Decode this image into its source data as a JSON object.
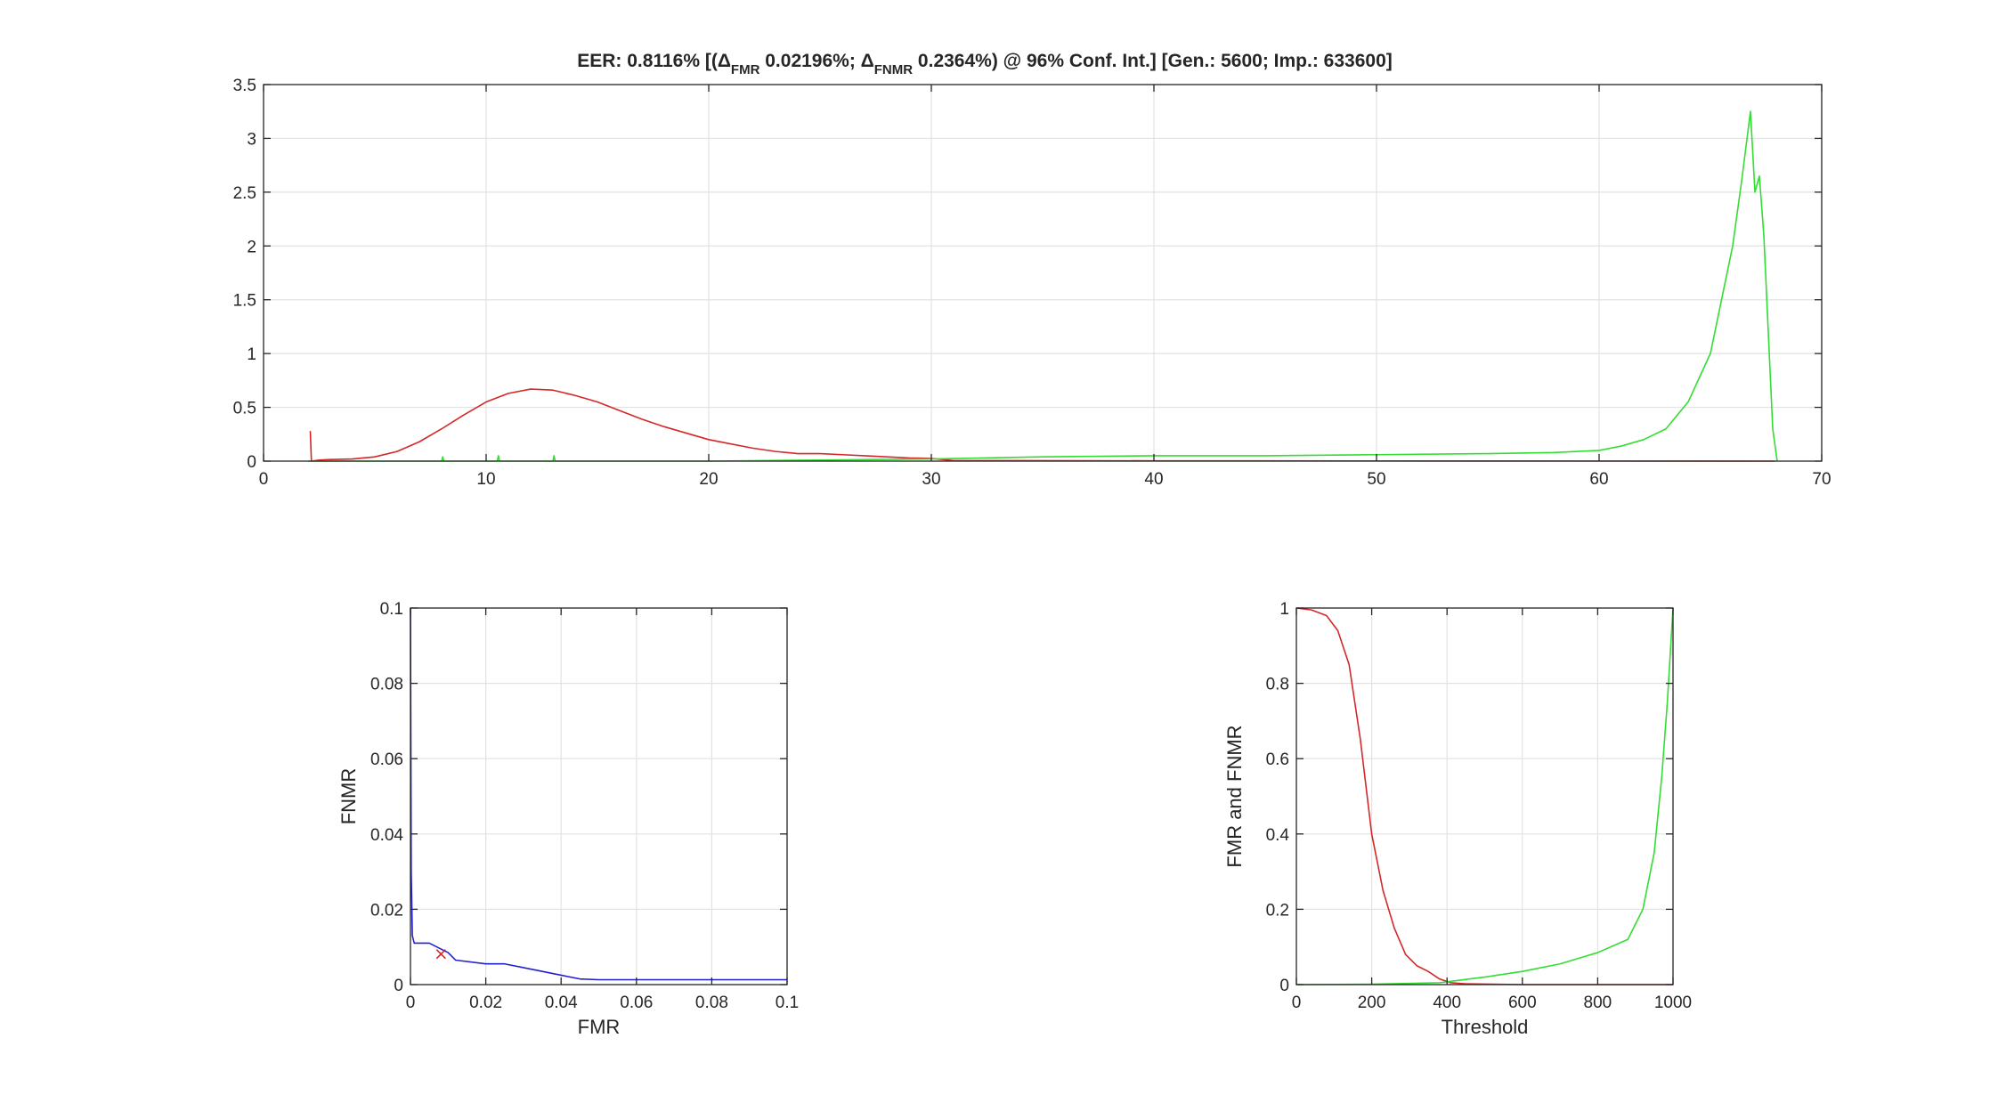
{
  "figure": {
    "title_parts": [
      "EER: 0.8116%   [(Δ",
      "FMR",
      " 0.02196%; Δ",
      "FNMR",
      " 0.2364%) @ 96% Conf. Int.]   [Gen.: 5600; Imp.: 633600]"
    ]
  },
  "chart_data": [
    {
      "type": "line",
      "name": "score-distributions",
      "xlim": [
        0,
        70
      ],
      "ylim": [
        0,
        3.5
      ],
      "xticks": [
        0,
        10,
        20,
        30,
        40,
        50,
        60,
        70
      ],
      "yticks": [
        0,
        0.5,
        1,
        1.5,
        2,
        2.5,
        3,
        3.5
      ],
      "grid": true,
      "xlabel": "",
      "ylabel": "",
      "series": [
        {
          "color": "#d62728",
          "points": [
            [
              2.1,
              0.28
            ],
            [
              2.15,
              0.0
            ],
            [
              2.5,
              0.01
            ],
            [
              3,
              0.015
            ],
            [
              4,
              0.02
            ],
            [
              5,
              0.04
            ],
            [
              6,
              0.09
            ],
            [
              7,
              0.18
            ],
            [
              8,
              0.3
            ],
            [
              9,
              0.43
            ],
            [
              10,
              0.55
            ],
            [
              11,
              0.63
            ],
            [
              12,
              0.67
            ],
            [
              13,
              0.66
            ],
            [
              14,
              0.61
            ],
            [
              15,
              0.55
            ],
            [
              16,
              0.47
            ],
            [
              17,
              0.39
            ],
            [
              18,
              0.32
            ],
            [
              19,
              0.26
            ],
            [
              20,
              0.2
            ],
            [
              21,
              0.16
            ],
            [
              22,
              0.12
            ],
            [
              23,
              0.09
            ],
            [
              24,
              0.07
            ],
            [
              25,
              0.07
            ],
            [
              26,
              0.06
            ],
            [
              27,
              0.05
            ],
            [
              28,
              0.04
            ],
            [
              29,
              0.03
            ],
            [
              30,
              0.025
            ],
            [
              31,
              0.005
            ],
            [
              40,
              0.003
            ],
            [
              50,
              0.002
            ],
            [
              60,
              0.001
            ],
            [
              67.9,
              0.0
            ]
          ]
        },
        {
          "color": "#33dd33",
          "points": [
            [
              2,
              0.0
            ],
            [
              8,
              0.0
            ],
            [
              8.05,
              0.04
            ],
            [
              8.1,
              0.0
            ],
            [
              10.5,
              0.0
            ],
            [
              10.55,
              0.05
            ],
            [
              10.6,
              0.0
            ],
            [
              13,
              0.0
            ],
            [
              13.05,
              0.05
            ],
            [
              13.1,
              0.0
            ],
            [
              20,
              0.0
            ],
            [
              25,
              0.01
            ],
            [
              30,
              0.02
            ],
            [
              35,
              0.04
            ],
            [
              40,
              0.05
            ],
            [
              45,
              0.05
            ],
            [
              50,
              0.06
            ],
            [
              55,
              0.07
            ],
            [
              58,
              0.08
            ],
            [
              60,
              0.1
            ],
            [
              61,
              0.14
            ],
            [
              62,
              0.2
            ],
            [
              63,
              0.3
            ],
            [
              64,
              0.55
            ],
            [
              65,
              1.0
            ],
            [
              65.5,
              1.5
            ],
            [
              66,
              2.0
            ],
            [
              66.4,
              2.6
            ],
            [
              66.8,
              3.25
            ],
            [
              67.0,
              2.5
            ],
            [
              67.2,
              2.65
            ],
            [
              67.4,
              2.1
            ],
            [
              67.6,
              1.2
            ],
            [
              67.8,
              0.3
            ],
            [
              68,
              0.0
            ]
          ]
        }
      ]
    },
    {
      "type": "line",
      "name": "det-curve",
      "xlabel": "FMR",
      "ylabel": "FNMR",
      "xlim": [
        0,
        0.1
      ],
      "ylim": [
        0,
        0.1
      ],
      "xticks": [
        0,
        0.02,
        0.04,
        0.06,
        0.08,
        0.1
      ],
      "yticks": [
        0,
        0.02,
        0.04,
        0.06,
        0.08,
        0.1
      ],
      "grid": true,
      "series": [
        {
          "color": "#2222cc",
          "points": [
            [
              0,
              0.1
            ],
            [
              0.0002,
              0.03
            ],
            [
              0.0005,
              0.013
            ],
            [
              0.001,
              0.011
            ],
            [
              0.005,
              0.011
            ],
            [
              0.008,
              0.0095
            ],
            [
              0.01,
              0.0085
            ],
            [
              0.012,
              0.0065
            ],
            [
              0.02,
              0.0055
            ],
            [
              0.025,
              0.0055
            ],
            [
              0.03,
              0.0045
            ],
            [
              0.035,
              0.0035
            ],
            [
              0.04,
              0.0025
            ],
            [
              0.045,
              0.0015
            ],
            [
              0.05,
              0.0013
            ],
            [
              0.1,
              0.0013
            ]
          ]
        }
      ],
      "eer_marker": {
        "x": 0.008116,
        "y": 0.008116,
        "color": "#d62728"
      }
    },
    {
      "type": "line",
      "name": "fmr-fnmr-vs-threshold",
      "xlabel": "Threshold",
      "ylabel": "FMR and FNMR",
      "xlim": [
        0,
        1000
      ],
      "ylim": [
        0,
        1
      ],
      "xticks": [
        0,
        200,
        400,
        600,
        800,
        1000
      ],
      "yticks": [
        0,
        0.2,
        0.4,
        0.6,
        0.8,
        1
      ],
      "grid": true,
      "series": [
        {
          "color": "#d62728",
          "points": [
            [
              0,
              1.0
            ],
            [
              40,
              0.995
            ],
            [
              80,
              0.98
            ],
            [
              110,
              0.94
            ],
            [
              140,
              0.85
            ],
            [
              170,
              0.65
            ],
            [
              200,
              0.4
            ],
            [
              230,
              0.25
            ],
            [
              260,
              0.15
            ],
            [
              290,
              0.08
            ],
            [
              320,
              0.05
            ],
            [
              350,
              0.035
            ],
            [
              380,
              0.015
            ],
            [
              410,
              0.005
            ],
            [
              450,
              0.002
            ],
            [
              600,
              0.0
            ],
            [
              1000,
              0.0
            ]
          ]
        },
        {
          "color": "#33dd33",
          "points": [
            [
              0,
              0.0
            ],
            [
              200,
              0.001
            ],
            [
              380,
              0.005
            ],
            [
              420,
              0.01
            ],
            [
              500,
              0.02
            ],
            [
              600,
              0.035
            ],
            [
              700,
              0.055
            ],
            [
              800,
              0.085
            ],
            [
              880,
              0.12
            ],
            [
              920,
              0.2
            ],
            [
              950,
              0.35
            ],
            [
              970,
              0.55
            ],
            [
              985,
              0.75
            ],
            [
              1000,
              1.0
            ]
          ]
        }
      ]
    }
  ]
}
